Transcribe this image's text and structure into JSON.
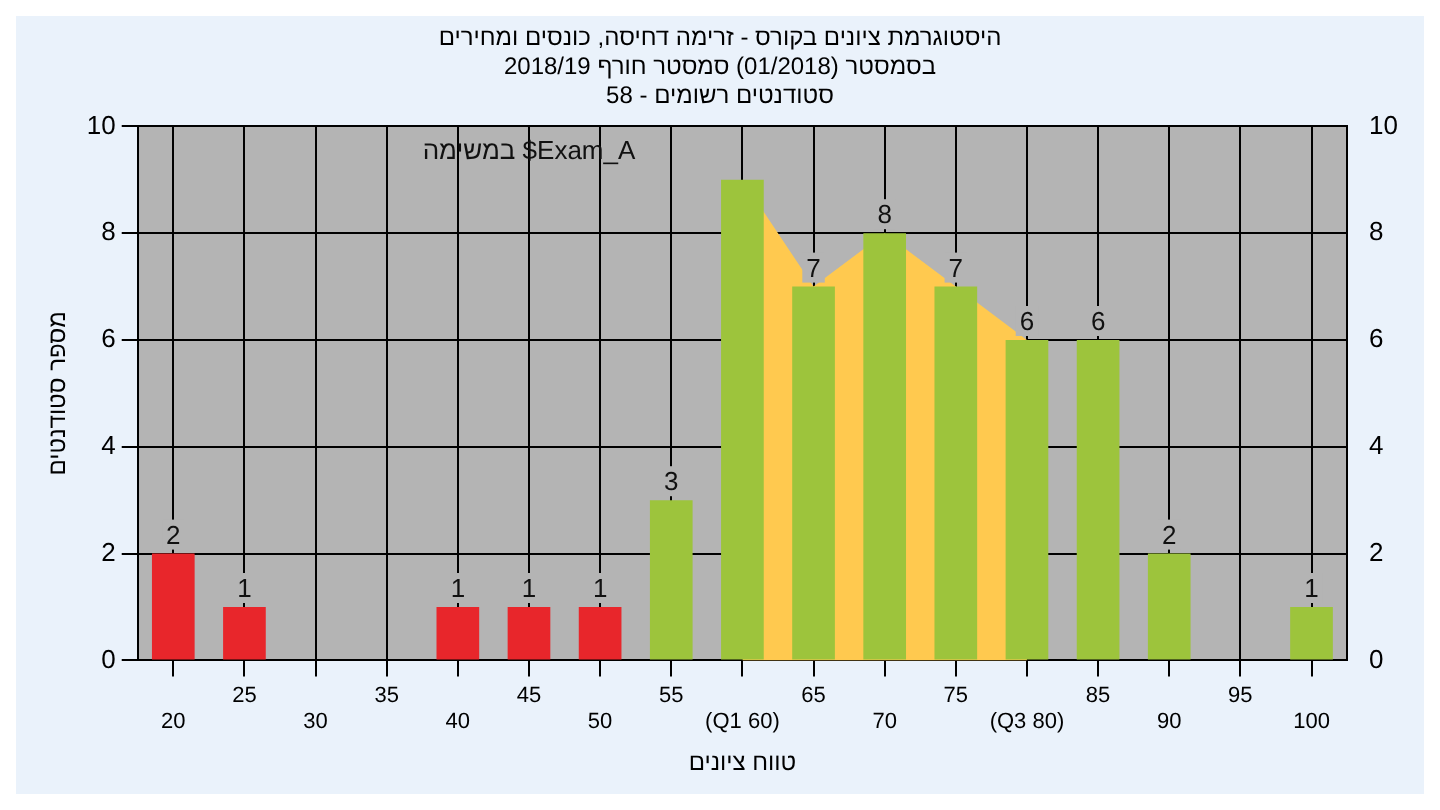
{
  "chart_data": {
    "type": "bar",
    "title": [
      "היסטוגרמת ציונים בקורס - זרימה דחיסה, כונסים ומחירים",
      "בסמסטר (01/2018) סמסטר חורף 2018/19",
      "סטודנטים רשומים - 58"
    ],
    "xlabel": "טווח ציונים",
    "ylabel": "מספר סטודנטים",
    "categories": [
      "20",
      "25",
      "30",
      "35",
      "40",
      "45",
      "50",
      "55",
      "(Q1 60)",
      "65",
      "70",
      "75",
      "(Q3 80)",
      "85",
      "90",
      "95",
      "100"
    ],
    "series": [
      {
        "type": "area",
        "color": "#ffc94f",
        "marker": "none",
        "values": [
          null,
          null,
          null,
          null,
          null,
          null,
          null,
          null,
          9,
          7,
          8,
          7,
          6,
          null,
          null,
          null,
          null
        ]
      },
      {
        "colors": [
          "#e8262b",
          "#e8262b",
          "#e8262b",
          "#e8262b",
          "#e8262b",
          "#e8262b",
          "#e8262b",
          "#9dc43c",
          "#9dc43c",
          "#9dc43c",
          "#9dc43c",
          "#9dc43c",
          "#9dc43c",
          "#9dc43c",
          "#9dc43c",
          "#9dc43c",
          "#9dc43c"
        ],
        "values": [
          2,
          1,
          0,
          0,
          1,
          1,
          1,
          3,
          9,
          7,
          8,
          7,
          6,
          6,
          2,
          0,
          1
        ],
        "value_labels": [
          "2",
          "1",
          null,
          null,
          "1",
          "1",
          "1",
          "3",
          null,
          "7",
          "8",
          "7",
          "6",
          "6",
          "2",
          null,
          "1"
        ]
      }
    ],
    "annotations": [
      "במשימה $Exam_A"
    ],
    "ylim": [
      0,
      10
    ],
    "yticks": [
      0,
      2,
      4,
      6,
      8,
      10
    ],
    "y2lim": [
      0,
      10
    ],
    "y2ticks": [
      0,
      2,
      4,
      6,
      8,
      10
    ],
    "grid": true,
    "legend": false
  }
}
